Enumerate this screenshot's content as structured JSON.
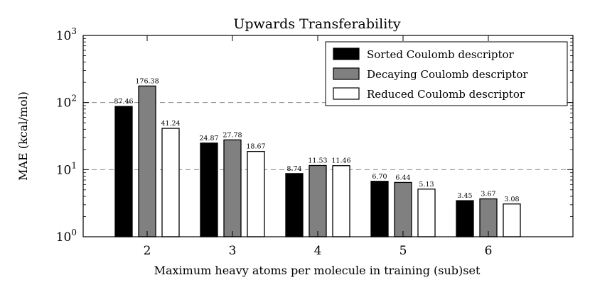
{
  "chart_data": {
    "type": "bar",
    "title": "Upwards Transferability",
    "xlabel": "Maximum heavy atoms per molecule in training (sub)set",
    "ylabel": "MAE (kcal/mol)",
    "yscale": "log",
    "ylim": [
      1,
      1000
    ],
    "y_ticks": [
      {
        "value": 1,
        "base": "10",
        "exp": "0"
      },
      {
        "value": 10,
        "base": "10",
        "exp": "1"
      },
      {
        "value": 100,
        "base": "10",
        "exp": "2"
      },
      {
        "value": 1000,
        "base": "10",
        "exp": "3"
      }
    ],
    "gridlines_y": [
      10,
      100
    ],
    "categories": [
      "2",
      "3",
      "4",
      "5",
      "6"
    ],
    "series": [
      {
        "name": "Sorted Coulomb descriptor",
        "color": "#000000",
        "values": [
          87.46,
          24.87,
          8.74,
          6.7,
          3.45
        ],
        "labels": [
          "87.46",
          "24.87",
          "8.74",
          "6.70",
          "3.45"
        ]
      },
      {
        "name": "Decaying Coulomb descriptor",
        "color": "#808080",
        "values": [
          176.38,
          27.78,
          11.53,
          6.44,
          3.67
        ],
        "labels": [
          "176.38",
          "27.78",
          "11.53",
          "6.44",
          "3.67"
        ]
      },
      {
        "name": "Reduced Coulomb descriptor",
        "color": "#ffffff",
        "values": [
          41.24,
          18.67,
          11.46,
          5.13,
          3.08
        ],
        "labels": [
          "41.24",
          "18.67",
          "11.46",
          "5.13",
          "3.08"
        ]
      }
    ],
    "legend": {
      "position": "top-right"
    },
    "grid": "dashed horizontal at major ticks"
  }
}
